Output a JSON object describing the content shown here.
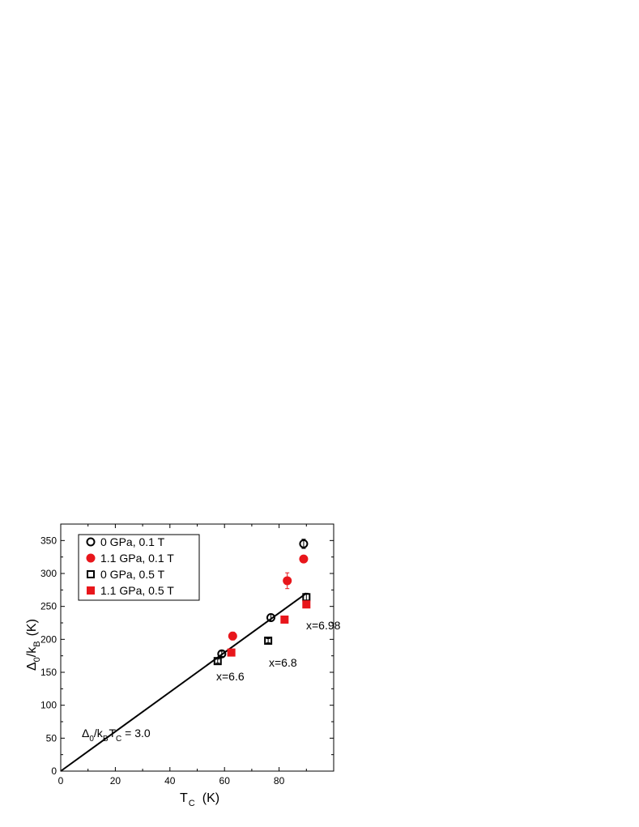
{
  "chart_data": {
    "type": "scatter",
    "xlabel": {
      "main": "T",
      "sub": "C",
      "unit": "(K)"
    },
    "ylabel": {
      "main": "Δ",
      "sub1": "0",
      "mid": "/k",
      "sub2": "B",
      "unit": "(K)"
    },
    "xlim": [
      0,
      100
    ],
    "ylim": [
      0,
      375
    ],
    "xticks": [
      0,
      20,
      40,
      60,
      80
    ],
    "yticks": [
      0,
      50,
      100,
      150,
      200,
      250,
      300,
      350
    ],
    "grid": false,
    "legend_position": "top-left",
    "series": [
      {
        "name": "0 GPa, 0.1 T",
        "marker": "circle-open",
        "color": "#000000",
        "x": [
          59,
          77,
          89
        ],
        "y": [
          178,
          233,
          345
        ],
        "yerr": [
          4,
          5,
          7
        ]
      },
      {
        "name": "1.1 GPa, 0.1 T",
        "marker": "circle-filled",
        "color": "#e8161b",
        "x": [
          63,
          83,
          89
        ],
        "y": [
          205,
          289,
          322
        ],
        "yerr": [
          6,
          12,
          4
        ]
      },
      {
        "name": "0 GPa, 0.5 T",
        "marker": "square-open",
        "color": "#000000",
        "x": [
          57.5,
          76,
          90
        ],
        "y": [
          167,
          198,
          264
        ],
        "yerr": [
          3,
          3,
          6
        ]
      },
      {
        "name": "1.1 GPa, 0.5 T",
        "marker": "square-filled",
        "color": "#e8161b",
        "x": [
          62.5,
          82,
          90
        ],
        "y": [
          180,
          230,
          253
        ],
        "yerr": [
          3,
          3,
          4
        ]
      }
    ],
    "fit_line": {
      "x": [
        0,
        90
      ],
      "y": [
        0,
        270
      ]
    },
    "fit_label": {
      "a": "Δ",
      "a_sub": "0",
      "b": "/k",
      "b_sub": "B",
      "c": "T",
      "c_sub": "C",
      "rest": " = 3.0"
    },
    "annotations": [
      "x=6.6",
      "x=6.8",
      "x=6.98"
    ]
  }
}
